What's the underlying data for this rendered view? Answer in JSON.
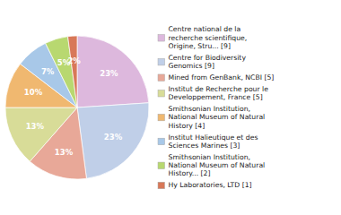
{
  "chart_data": {
    "type": "pie",
    "categories": [
      "Centre national de la\nrecherche scientifique,\nOrigine, Stru... [9]",
      "Centre for Biodiversity\nGenomics [9]",
      "Mined from GenBank, NCBI [5]",
      "Institut de Recherche pour le\nDeveloppement, France [5]",
      "Smithsonian Institution,\nNational Museum of Natural\nHistory [4]",
      "Institut Halieutique et des\nSciences Marines [3]",
      "Smithsonian Institution,\nNational Museum of Natural\nHistory... [2]",
      "Hy Laboratories, LTD [1]"
    ],
    "values": [
      23,
      23,
      13,
      13,
      10,
      7,
      5,
      2
    ],
    "value_labels": [
      "23%",
      "23%",
      "13%",
      "13%",
      "10%",
      "7%",
      "5%",
      "2%"
    ],
    "colors": [
      "#ddb8dd",
      "#c0cfe8",
      "#e8a898",
      "#d8dc98",
      "#f0b870",
      "#a8c8e8",
      "#b8d870",
      "#d87858"
    ],
    "data_labels": true,
    "legend": "right"
  }
}
